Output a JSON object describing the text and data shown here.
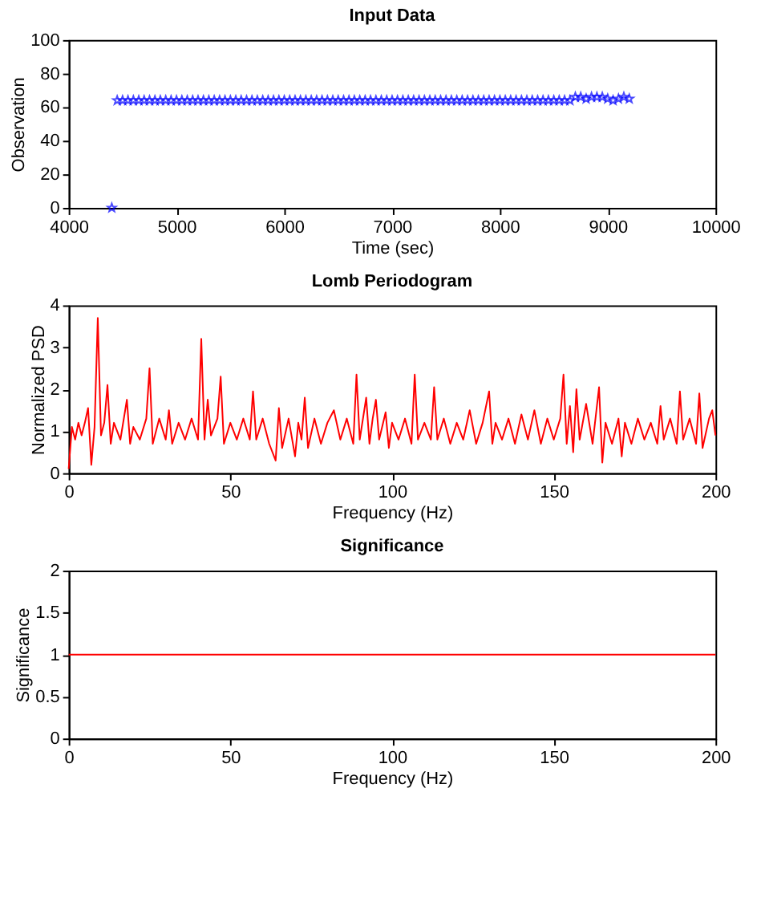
{
  "chart_data": [
    {
      "type": "scatter",
      "title": "Input Data",
      "xlabel": "Time (sec)",
      "ylabel": "Observation",
      "marker": "star",
      "grid": false,
      "xlim": [
        4000,
        10000
      ],
      "xticks": [
        4000,
        5000,
        6000,
        7000,
        8000,
        9000,
        10000
      ],
      "ylim": [
        0,
        100
      ],
      "yticks": [
        0,
        20,
        40,
        60,
        80,
        100
      ],
      "series": [
        {
          "color": "#0000ff",
          "x": [
            4400,
            4450,
            4500,
            4550,
            4600,
            4650,
            4700,
            4750,
            4800,
            4850,
            4900,
            4950,
            5000,
            5050,
            5100,
            5150,
            5200,
            5250,
            5300,
            5350,
            5400,
            5450,
            5500,
            5550,
            5600,
            5650,
            5700,
            5750,
            5800,
            5850,
            5900,
            5950,
            6000,
            6050,
            6100,
            6150,
            6200,
            6250,
            6300,
            6350,
            6400,
            6450,
            6500,
            6550,
            6600,
            6650,
            6700,
            6750,
            6800,
            6850,
            6900,
            6950,
            7000,
            7050,
            7100,
            7150,
            7200,
            7250,
            7300,
            7350,
            7400,
            7450,
            7500,
            7550,
            7600,
            7650,
            7700,
            7750,
            7800,
            7850,
            7900,
            7950,
            8000,
            8050,
            8100,
            8150,
            8200,
            8250,
            8300,
            8350,
            8400,
            8450,
            8500,
            8550,
            8600,
            8650,
            8700,
            8750,
            8800,
            8850,
            8900,
            8950,
            9000,
            9050,
            9100,
            9150,
            9200
          ],
          "values": [
            0,
            64,
            64,
            64,
            64,
            64,
            64,
            64,
            64,
            64,
            64,
            64,
            64,
            64,
            64,
            64,
            64,
            64,
            64,
            64,
            64,
            64,
            64,
            64,
            64,
            64,
            64,
            64,
            64,
            64,
            64,
            64,
            64,
            64,
            64,
            64,
            64,
            64,
            64,
            64,
            64,
            64,
            64,
            64,
            64,
            64,
            64,
            64,
            64,
            64,
            64,
            64,
            64,
            64,
            64,
            64,
            64,
            64,
            64,
            64,
            64,
            64,
            64,
            64,
            64,
            64,
            64,
            64,
            64,
            64,
            64,
            64,
            64,
            64,
            64,
            64,
            64,
            64,
            64,
            64,
            64,
            64,
            64,
            64,
            64,
            64,
            66,
            66,
            65,
            66,
            66,
            66,
            65,
            64,
            65,
            66,
            65
          ]
        }
      ]
    },
    {
      "type": "line",
      "title": "Lomb Periodogram",
      "xlabel": "Frequency (Hz)",
      "ylabel": "Normalized PSD",
      "grid": false,
      "line_style": "solid",
      "xlim": [
        0,
        200
      ],
      "xticks": [
        0,
        50,
        100,
        150,
        200
      ],
      "ylim": [
        0,
        4
      ],
      "yticks": [
        0,
        1,
        2,
        3,
        4
      ],
      "series": [
        {
          "color": "#ff0000",
          "x": [
            0,
            1,
            2,
            3,
            4,
            5,
            6,
            7,
            8,
            9,
            10,
            11,
            12,
            13,
            14,
            16,
            18,
            19,
            20,
            22,
            24,
            25,
            26,
            28,
            30,
            31,
            32,
            34,
            36,
            38,
            40,
            41,
            42,
            43,
            44,
            46,
            47,
            48,
            50,
            52,
            54,
            56,
            57,
            58,
            60,
            62,
            64,
            65,
            66,
            68,
            70,
            71,
            72,
            73,
            74,
            76,
            78,
            80,
            82,
            84,
            86,
            88,
            89,
            90,
            92,
            93,
            94,
            95,
            96,
            98,
            99,
            100,
            102,
            104,
            106,
            107,
            108,
            110,
            112,
            113,
            114,
            116,
            118,
            120,
            122,
            124,
            126,
            128,
            130,
            131,
            132,
            134,
            136,
            138,
            140,
            142,
            144,
            146,
            148,
            150,
            152,
            153,
            154,
            155,
            156,
            157,
            158,
            160,
            162,
            164,
            165,
            166,
            168,
            170,
            171,
            172,
            174,
            176,
            178,
            180,
            182,
            183,
            184,
            186,
            188,
            189,
            190,
            192,
            194,
            195,
            196,
            198,
            199,
            200
          ],
          "values": [
            0.1,
            1.1,
            0.8,
            1.2,
            0.9,
            1.2,
            1.55,
            0.2,
            1.1,
            3.7,
            0.9,
            1.2,
            2.1,
            0.7,
            1.2,
            0.8,
            1.75,
            0.7,
            1.1,
            0.8,
            1.3,
            2.5,
            0.7,
            1.3,
            0.8,
            1.5,
            0.7,
            1.2,
            0.8,
            1.3,
            0.8,
            3.2,
            0.8,
            1.75,
            0.9,
            1.3,
            2.3,
            0.7,
            1.2,
            0.8,
            1.3,
            0.8,
            1.95,
            0.8,
            1.3,
            0.7,
            0.3,
            1.55,
            0.6,
            1.3,
            0.4,
            1.2,
            0.8,
            1.8,
            0.6,
            1.3,
            0.7,
            1.2,
            1.5,
            0.8,
            1.3,
            0.7,
            2.35,
            0.8,
            1.8,
            0.7,
            1.3,
            1.75,
            0.8,
            1.45,
            0.6,
            1.2,
            0.8,
            1.3,
            0.7,
            2.35,
            0.8,
            1.2,
            0.8,
            2.05,
            0.8,
            1.3,
            0.7,
            1.2,
            0.8,
            1.5,
            0.7,
            1.2,
            1.95,
            0.7,
            1.2,
            0.8,
            1.3,
            0.7,
            1.4,
            0.8,
            1.5,
            0.7,
            1.3,
            0.8,
            1.3,
            2.35,
            0.7,
            1.6,
            0.5,
            2.0,
            0.8,
            1.65,
            0.7,
            2.05,
            0.25,
            1.2,
            0.7,
            1.3,
            0.4,
            1.2,
            0.7,
            1.3,
            0.8,
            1.2,
            0.7,
            1.6,
            0.8,
            1.3,
            0.7,
            1.95,
            0.8,
            1.3,
            0.7,
            1.9,
            0.6,
            1.3,
            1.5,
            0.9
          ]
        }
      ]
    },
    {
      "type": "line",
      "title": "Significance",
      "xlabel": "Frequency (Hz)",
      "ylabel": "Significance",
      "grid": false,
      "line_style": "solid",
      "xlim": [
        0,
        200
      ],
      "xticks": [
        0,
        50,
        100,
        150,
        200
      ],
      "ylim": [
        0,
        2
      ],
      "yticks": [
        0,
        0.5,
        1,
        1.5,
        2
      ],
      "series": [
        {
          "color": "#ff0000",
          "x": [
            0,
            200
          ],
          "values": [
            1,
            1
          ]
        }
      ]
    }
  ]
}
